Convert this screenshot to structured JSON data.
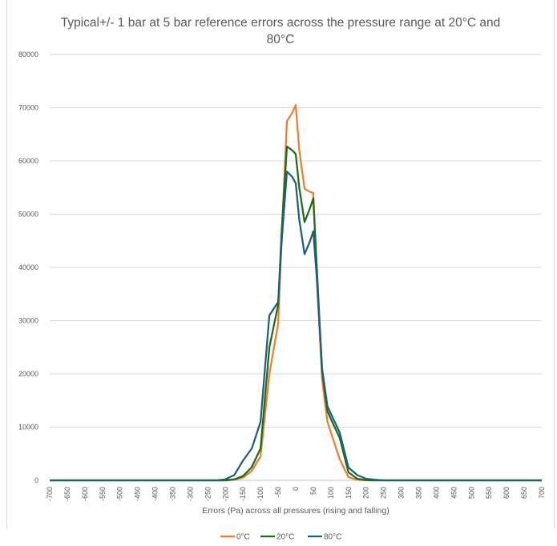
{
  "chart_data": {
    "type": "line",
    "title": "Typical+/- 1 bar at 5 bar reference errors across the pressure range at 20°C and 80°C",
    "xlabel": "Errors (Pa) across all pressures (rising and falling)",
    "ylabel": "",
    "xlim": [
      -700,
      700
    ],
    "ylim": [
      0,
      80000
    ],
    "yticks": [
      0,
      10000,
      20000,
      30000,
      40000,
      50000,
      60000,
      70000,
      80000
    ],
    "xtick_labels": [
      "-700",
      "-650",
      "-600",
      "-550",
      "-500",
      "-450",
      "-400",
      "-350",
      "-300",
      "-250",
      "-200",
      "-150",
      "-100",
      "-50",
      "0",
      "50",
      "100",
      "150",
      "200",
      "250",
      "300",
      "350",
      "400",
      "450",
      "500",
      "550",
      "600",
      "650",
      "700"
    ],
    "grid": "horizontal",
    "legend_position": "bottom",
    "x": [
      -700,
      -675,
      -650,
      -625,
      -600,
      -575,
      -550,
      -525,
      -500,
      -475,
      -450,
      -425,
      -400,
      -375,
      -350,
      -325,
      -300,
      -275,
      -250,
      -225,
      -200,
      -175,
      -150,
      -125,
      -100,
      -75,
      -50,
      -40,
      -25,
      -10,
      0,
      10,
      25,
      40,
      50,
      60,
      75,
      90,
      100,
      125,
      150,
      175,
      200,
      225,
      250,
      275,
      300,
      325,
      350,
      375,
      400,
      425,
      450,
      475,
      500,
      525,
      550,
      575,
      600,
      625,
      650,
      675,
      700
    ],
    "series": [
      {
        "name": "0°C",
        "color": "#ed7d31",
        "values": [
          0,
          0,
          0,
          0,
          0,
          0,
          0,
          0,
          0,
          0,
          0,
          0,
          0,
          0,
          0,
          0,
          0,
          0,
          0,
          0,
          0,
          100,
          500,
          1800,
          4500,
          20000,
          29500,
          46000,
          67500,
          69000,
          70500,
          62000,
          54800,
          54200,
          54000,
          38000,
          19000,
          11000,
          9000,
          4000,
          600,
          100,
          0,
          0,
          0,
          0,
          0,
          0,
          0,
          0,
          0,
          0,
          0,
          0,
          0,
          0,
          0,
          0,
          0,
          0,
          0,
          0,
          0
        ]
      },
      {
        "name": "20°C",
        "color": "#1e6b1e",
        "values": [
          0,
          0,
          0,
          0,
          0,
          0,
          0,
          0,
          0,
          0,
          0,
          0,
          0,
          0,
          0,
          0,
          0,
          0,
          0,
          0,
          0,
          200,
          800,
          2500,
          6000,
          25000,
          33000,
          47000,
          62700,
          62000,
          61300,
          55000,
          48500,
          51000,
          53000,
          40000,
          20500,
          13000,
          11500,
          8000,
          1500,
          300,
          50,
          0,
          0,
          0,
          0,
          0,
          0,
          0,
          0,
          0,
          0,
          0,
          0,
          0,
          0,
          0,
          0,
          0,
          0,
          0,
          0
        ]
      },
      {
        "name": "80°C",
        "color": "#1f5f7a",
        "values": [
          0,
          0,
          0,
          0,
          0,
          0,
          0,
          0,
          0,
          0,
          0,
          0,
          0,
          0,
          0,
          0,
          0,
          0,
          0,
          0,
          200,
          1000,
          3700,
          6000,
          11000,
          31000,
          33500,
          45000,
          58000,
          57000,
          55800,
          49000,
          42500,
          44800,
          46800,
          38000,
          21000,
          14000,
          12500,
          9000,
          2400,
          1000,
          300,
          100,
          0,
          0,
          0,
          0,
          0,
          0,
          0,
          0,
          0,
          0,
          0,
          0,
          0,
          0,
          0,
          0,
          0,
          0,
          0
        ]
      }
    ]
  }
}
